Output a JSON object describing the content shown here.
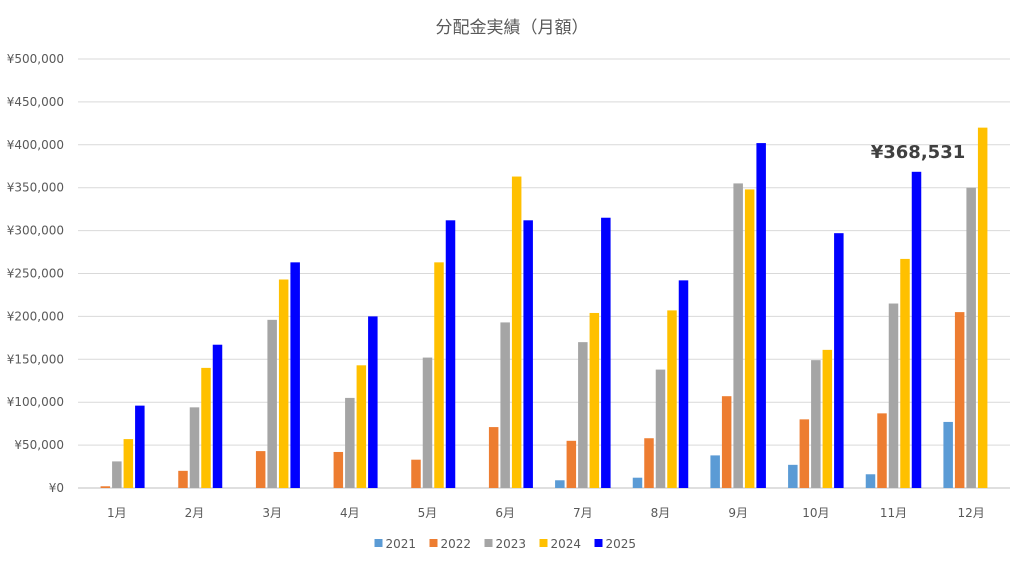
{
  "chart_data": {
    "type": "bar",
    "title": "分配金実績（月額）",
    "xlabel": "",
    "ylabel": "",
    "categories": [
      "1月",
      "2月",
      "3月",
      "4月",
      "5月",
      "6月",
      "7月",
      "8月",
      "9月",
      "10月",
      "11月",
      "12月"
    ],
    "ylim": [
      0,
      500000
    ],
    "yticks": [
      "¥0",
      "¥50,000",
      "¥100,000",
      "¥150,000",
      "¥200,000",
      "¥250,000",
      "¥300,000",
      "¥350,000",
      "¥400,000",
      "¥450,000",
      "¥500,000"
    ],
    "grid": true,
    "legend_position": "bottom",
    "series": [
      {
        "name": "2021",
        "color": "#5B9BD5",
        "values": [
          0,
          0,
          0,
          0,
          0,
          0,
          9000,
          12000,
          38000,
          27000,
          16000,
          77000
        ]
      },
      {
        "name": "2022",
        "color": "#ED7D31",
        "values": [
          2000,
          20000,
          43000,
          42000,
          33000,
          71000,
          55000,
          58000,
          107000,
          80000,
          87000,
          205000
        ]
      },
      {
        "name": "2023",
        "color": "#A5A5A5",
        "values": [
          31000,
          94000,
          196000,
          105000,
          152000,
          193000,
          170000,
          138000,
          355000,
          149000,
          215000,
          350000
        ]
      },
      {
        "name": "2024",
        "color": "#FFC000",
        "values": [
          57000,
          140000,
          243000,
          143000,
          263000,
          363000,
          204000,
          207000,
          348000,
          161000,
          267000,
          420000
        ]
      },
      {
        "name": "2025",
        "color": "#0000FF",
        "values": [
          96000,
          167000,
          263000,
          200000,
          312000,
          312000,
          315000,
          242000,
          402000,
          297000,
          368531,
          null
        ]
      }
    ],
    "annotation": "¥368,531"
  }
}
